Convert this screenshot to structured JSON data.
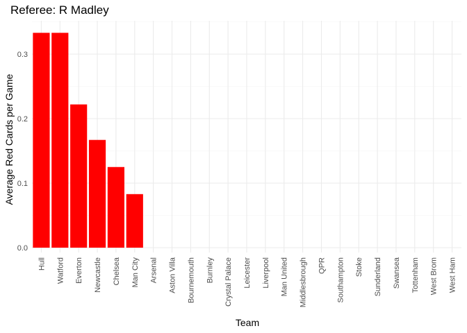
{
  "chart_data": {
    "type": "bar",
    "title": "Referee: R Madley",
    "xlabel": "Team",
    "ylabel": "Average Red Cards per Game",
    "categories": [
      "Hull",
      "Watford",
      "Everton",
      "Newcastle",
      "Chelsea",
      "Man City",
      "Arsenal",
      "Aston Villa",
      "Bournemouth",
      "Burnley",
      "Crystal Palace",
      "Leicester",
      "Liverpool",
      "Man United",
      "Middlesbrough",
      "QPR",
      "Southampton",
      "Stoke",
      "Sunderland",
      "Swansea",
      "Tottenham",
      "West Brom",
      "West Ham"
    ],
    "values": [
      0.333,
      0.333,
      0.222,
      0.167,
      0.125,
      0.083,
      0,
      0,
      0,
      0,
      0,
      0,
      0,
      0,
      0,
      0,
      0,
      0,
      0,
      0,
      0,
      0,
      0
    ],
    "ylim": [
      0,
      0.35
    ],
    "yticks": [
      0.0,
      0.1,
      0.2,
      0.3
    ],
    "ytick_labels": [
      "0.0",
      "0.1",
      "0.2",
      "0.3"
    ],
    "bar_color": "#ff0000",
    "grid": true,
    "legend": "none"
  }
}
